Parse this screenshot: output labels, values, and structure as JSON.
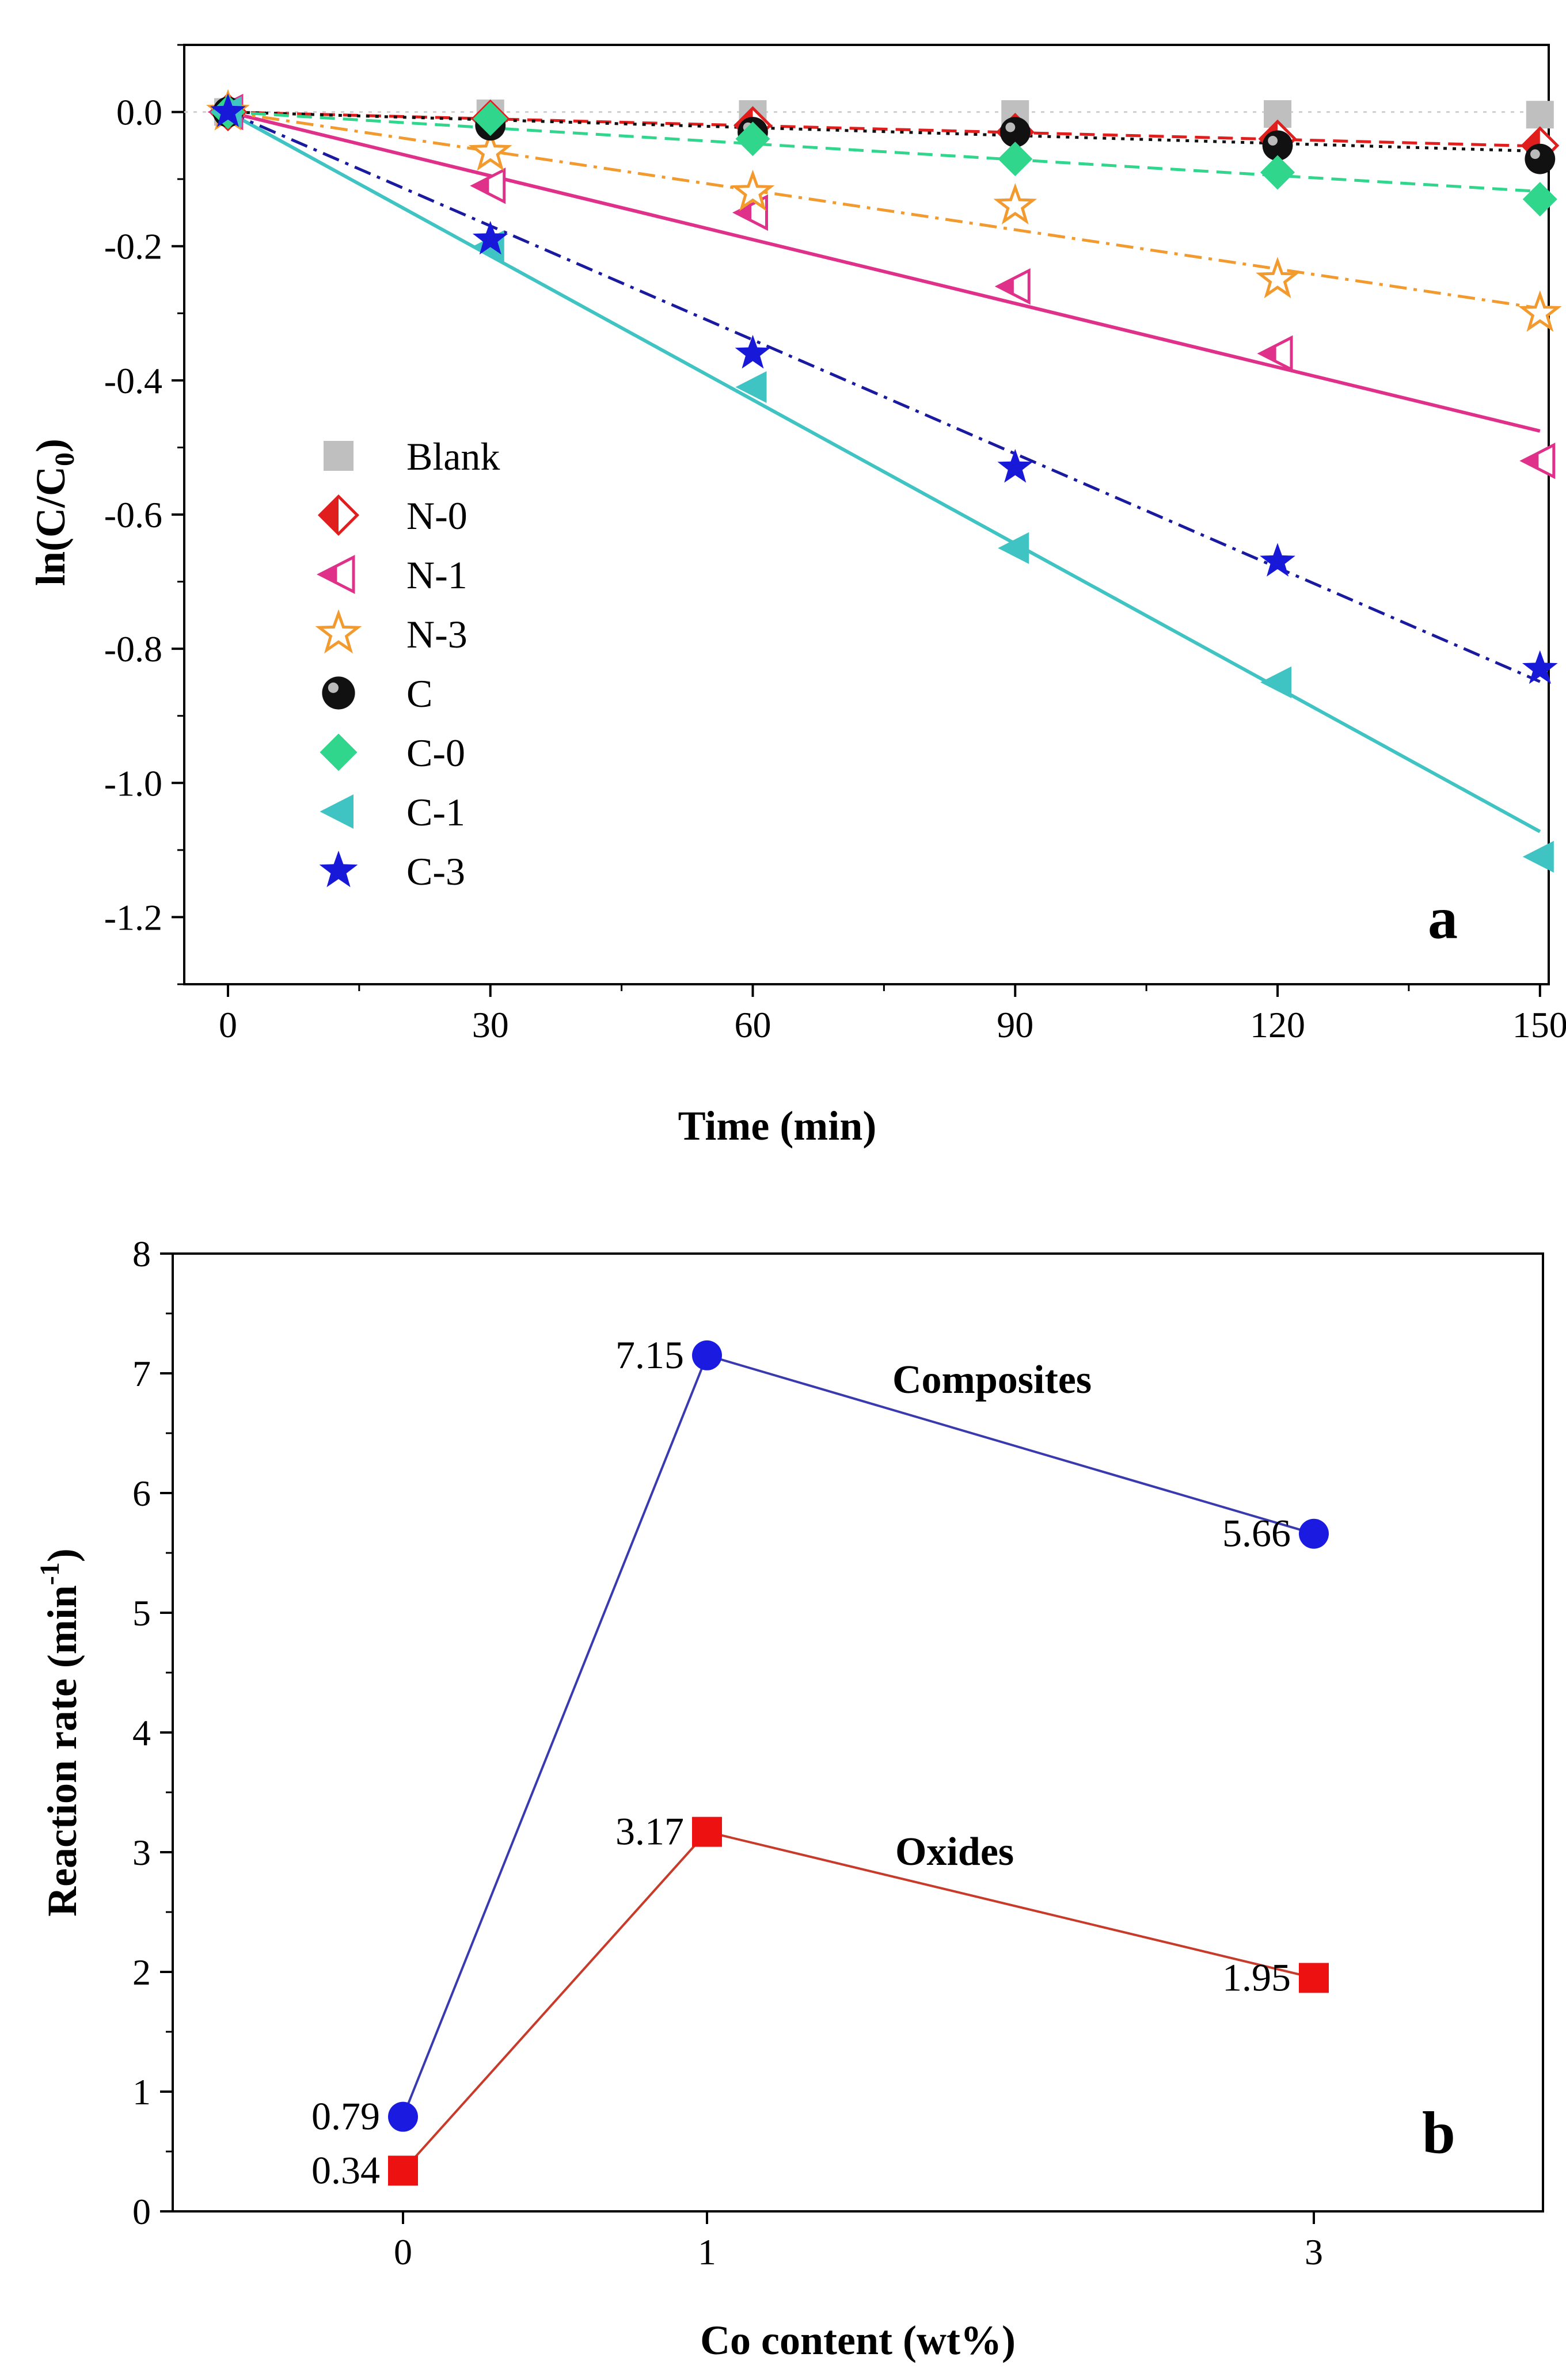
{
  "chart_data": [
    {
      "type": "line",
      "panel_label": "a",
      "xlabel": "Time (min)",
      "ylabel": "ln(C/C",
      "ylabel_sub": "0",
      "ylabel_end": ")",
      "xlim": [
        -5,
        151
      ],
      "ylim": [
        -1.3,
        0.1
      ],
      "x_ticks": [
        0,
        30,
        60,
        90,
        120,
        150
      ],
      "x_tick_labels": [
        "0",
        "30",
        "60",
        "90",
        "120",
        "150"
      ],
      "y_ticks": [
        0.0,
        -0.2,
        -0.4,
        -0.6,
        -0.8,
        -1.0,
        -1.2
      ],
      "y_tick_labels": [
        "0.0",
        "-0.2",
        "-0.4",
        "-0.6",
        "-0.8",
        "-1.0",
        "-1.2"
      ],
      "x": [
        0,
        30,
        60,
        90,
        120,
        150
      ],
      "series": [
        {
          "name": "Blank",
          "color": "#bfbfbf",
          "marker": "square",
          "line": "dotted",
          "line_color": "#bfbfbf",
          "values": [
            0.0,
            -0.002,
            -0.003,
            -0.003,
            -0.003,
            -0.004
          ],
          "fit_slope": -3e-05
        },
        {
          "name": "N-0",
          "color": "#e01e1e",
          "marker": "half-diamond",
          "line": "dashed",
          "line_color": "#e01e1e",
          "values": [
            0.0,
            -0.01,
            -0.02,
            -0.03,
            -0.04,
            -0.05
          ],
          "fit_slope": -0.00034
        },
        {
          "name": "N-1",
          "color": "#e0318a",
          "marker": "half-triangle-left",
          "line": "solid",
          "line_color": "#e0318a",
          "values": [
            0.0,
            -0.11,
            -0.15,
            -0.26,
            -0.36,
            -0.52
          ],
          "fit_slope": -0.00317
        },
        {
          "name": "N-3",
          "color": "#f29a2e",
          "marker": "star-open",
          "line": "dashdot",
          "line_color": "#f29a2e",
          "values": [
            0.0,
            -0.06,
            -0.12,
            -0.14,
            -0.25,
            -0.3
          ],
          "fit_slope": -0.00195
        },
        {
          "name": "C",
          "color": "#111111",
          "marker": "sphere",
          "line": "dotted",
          "line_color": "#111111",
          "values": [
            0.0,
            -0.02,
            -0.03,
            -0.03,
            -0.05,
            -0.07
          ],
          "fit_slope": -0.00039
        },
        {
          "name": "C-0",
          "color": "#2fd68c",
          "marker": "diamond",
          "line": "dashed",
          "line_color": "#2fd68c",
          "values": [
            0.0,
            -0.01,
            -0.04,
            -0.07,
            -0.09,
            -0.13
          ],
          "fit_slope": -0.00079
        },
        {
          "name": "C-1",
          "color": "#3fc3c3",
          "marker": "triangle-left",
          "line": "solid",
          "line_color": "#3fc3c3",
          "values": [
            0.0,
            -0.2,
            -0.41,
            -0.65,
            -0.85,
            -1.11
          ],
          "fit_slope": -0.00715
        },
        {
          "name": "C-3",
          "color": "#1818d8",
          "marker": "star",
          "line": "dashdot",
          "line_color": "#1a1aa0",
          "values": [
            0.0,
            -0.19,
            -0.36,
            -0.53,
            -0.67,
            -0.83
          ],
          "fit_slope": -0.00566
        }
      ]
    },
    {
      "type": "line",
      "panel_label": "b",
      "xlabel": "Co content (wt%)",
      "ylabel": "Reaction rate (min",
      "ylabel_sup": "-1",
      "ylabel_end": ")",
      "categories": [
        "0",
        "1",
        "3"
      ],
      "ylim": [
        0,
        8
      ],
      "y_ticks": [
        0,
        1,
        2,
        3,
        4,
        5,
        6,
        7,
        8
      ],
      "y_tick_labels": [
        "0",
        "1",
        "2",
        "3",
        "4",
        "5",
        "6",
        "7",
        "8"
      ],
      "series": [
        {
          "name": "Composites",
          "color": "#1a1ae0",
          "line_color": "#3a3ab0",
          "marker": "circle",
          "values": [
            0.79,
            7.15,
            5.66
          ],
          "labels": [
            "0.79",
            "7.15",
            "5.66"
          ]
        },
        {
          "name": "Oxides",
          "color": "#ee1111",
          "line_color": "#c83a2a",
          "marker": "square",
          "values": [
            0.34,
            3.17,
            1.95
          ],
          "labels": [
            "0.34",
            "3.17",
            "1.95"
          ]
        }
      ]
    }
  ]
}
